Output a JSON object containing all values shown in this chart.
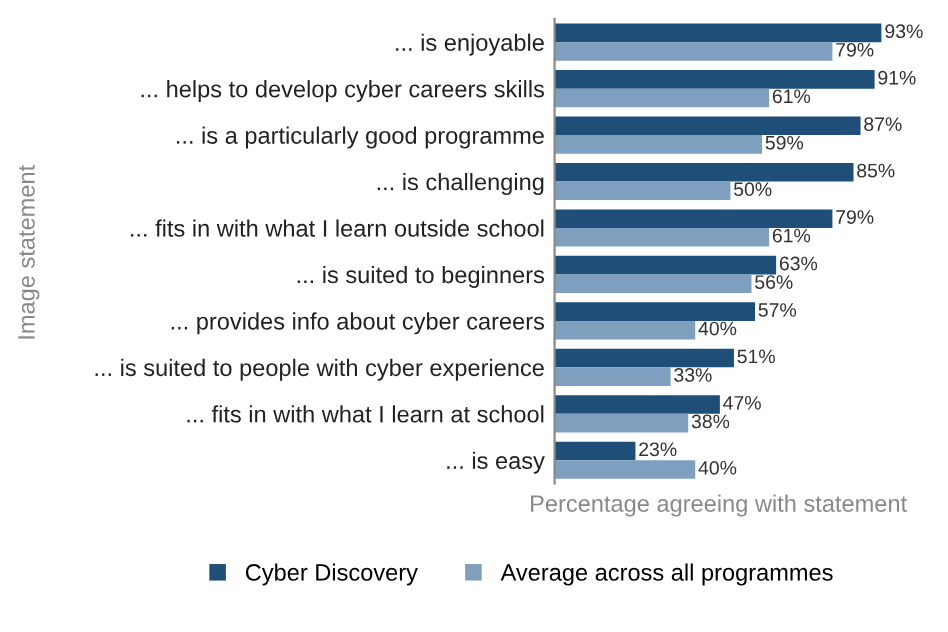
{
  "chart_data": {
    "type": "bar",
    "orientation": "horizontal",
    "ylabel": "Image statement",
    "xlabel": "Percentage agreeing with statement",
    "categories": [
      "... is enjoyable",
      "... helps to develop cyber careers skills",
      "... is a particularly good programme",
      "... is challenging",
      "... fits in with what I learn outside school",
      "... is suited to beginners",
      "... provides info about cyber careers",
      "... is suited to people with cyber experience",
      "... fits in with what I learn at school",
      "... is easy"
    ],
    "series": [
      {
        "name": "Cyber Discovery",
        "color": "#1f4e79",
        "values": [
          93,
          91,
          87,
          85,
          79,
          63,
          57,
          51,
          47,
          23
        ],
        "value_labels": [
          "93%",
          "91%",
          "87%",
          "85%",
          "79%",
          "63%",
          "57%",
          "51%",
          "47%",
          "23%"
        ]
      },
      {
        "name": "Average across all programmes",
        "color": "#7f9fbf",
        "values": [
          79,
          61,
          59,
          50,
          61,
          56,
          40,
          33,
          38,
          40
        ],
        "value_labels": [
          "79%",
          "61%",
          "59%",
          "50%",
          "61%",
          "56%",
          "40%",
          "33%",
          "38%",
          "40%"
        ]
      }
    ],
    "legend": "bottom",
    "grid": false
  }
}
